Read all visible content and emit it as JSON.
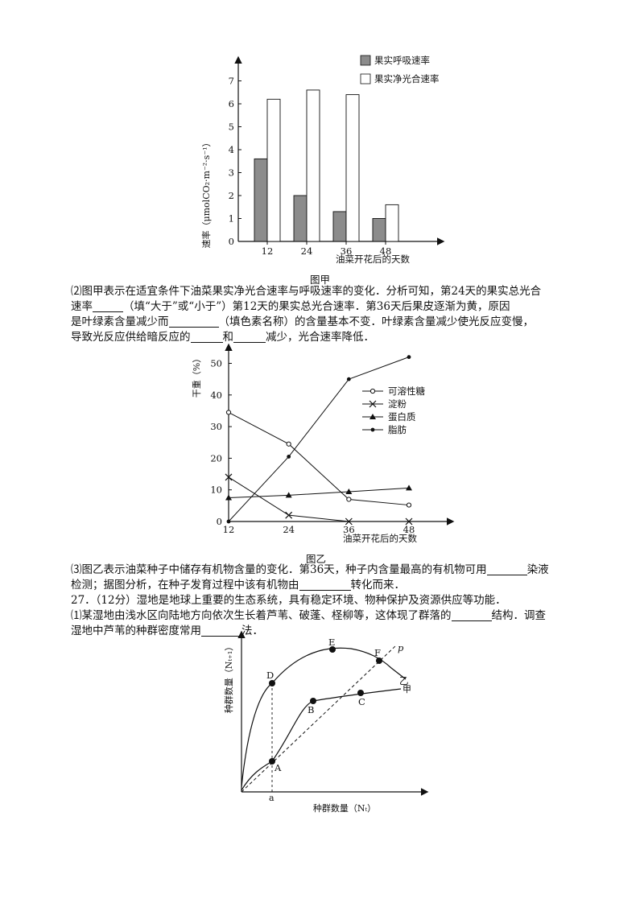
{
  "fig_a": {
    "caption": "图甲",
    "xlabel": "油菜开花后的天数",
    "ylabel": "速率（μmolCO₂·m⁻²·s⁻¹）",
    "legend": [
      "果实呼吸速率",
      "果实净光合速率"
    ]
  },
  "fig_b": {
    "caption": "图乙",
    "xlabel": "油菜开花后的天数",
    "ylabel": "干重（%）",
    "legend": [
      "可溶性糖",
      "淀粉",
      "蛋白质",
      "脂肪"
    ]
  },
  "fig_c": {
    "xlabel": "种群数量（Nₜ）",
    "ylabel": "种群数量（Nₜ₊₁）",
    "point_labels": [
      "A",
      "B",
      "C",
      "D",
      "E",
      "F"
    ],
    "curve_labels": [
      "p",
      "乙",
      "甲"
    ],
    "a_label": "a"
  },
  "q2": {
    "l1": "⑵图甲表示在适宜条件下油菜果实净光合速率与呼吸速率的变化．分析可知，第24天的果实总光合",
    "l2a": "速率",
    "l2b": "（填“大于”或“小于”）第12天的果实总光合速率．第36天后果皮逐渐为黄，原因",
    "l3a": "是叶绿素含量减少而",
    "l3b": "（填色素名称）的含量基本不变．叶绿素含量减少使光反应变慢，",
    "l4a": "导致光反应供给暗反应的",
    "l4b": "和",
    "l4c": "减少，光合速率降低．"
  },
  "q3": {
    "l1a": "⑶图乙表示油菜种子中储存有机物含量的变化．第36天，种子内含量最高的有机物可用",
    "l1b": "染液",
    "l2a": "检测；据图分析，在种子发育过程中该有机物由",
    "l2b": "转化而来．"
  },
  "q27": {
    "l1": "27．（12分）湿地是地球上重要的生态系统，具有稳定环境、物种保护及资源供应等功能．",
    "l2a": "⑴某湿地由浅水区向陆地方向依次生长着芦苇、破蓬、柽柳等，这体现了群落的",
    "l2b": "结构．调查",
    "l3a": "湿地中芦苇的种群密度常用",
    "l3b": "法．"
  },
  "chart_data": [
    {
      "type": "bar",
      "categories": [
        "12",
        "24",
        "36",
        "48"
      ],
      "series": [
        {
          "name": "果实呼吸速率",
          "values": [
            3.6,
            2.0,
            1.3,
            1.0
          ]
        },
        {
          "name": "果实净光合速率",
          "values": [
            6.2,
            6.6,
            6.4,
            1.6
          ]
        }
      ],
      "yticks": [
        0,
        1,
        2,
        3,
        4,
        5,
        6,
        7
      ],
      "ylim": [
        0,
        8
      ],
      "colors": [
        "#8c8c8c",
        "#ffffff"
      ]
    },
    {
      "type": "line",
      "x": [
        12,
        24,
        36,
        48
      ],
      "series": [
        {
          "name": "可溶性糖",
          "values": [
            34.5,
            24.5,
            7,
            5.2
          ],
          "marker": "open-circle"
        },
        {
          "name": "淀粉",
          "values": [
            14,
            2,
            0,
            0
          ],
          "marker": "x"
        },
        {
          "name": "蛋白质",
          "values": [
            7.5,
            8.3,
            9.4,
            10.6
          ],
          "marker": "triangle"
        },
        {
          "name": "脂肪",
          "values": [
            0,
            20.5,
            45,
            52
          ],
          "marker": "filled-circle"
        }
      ],
      "yticks": [
        0,
        10,
        20,
        30,
        40,
        50
      ],
      "xticks": [
        12,
        24,
        36,
        48
      ],
      "ylim": [
        0,
        55
      ]
    }
  ]
}
